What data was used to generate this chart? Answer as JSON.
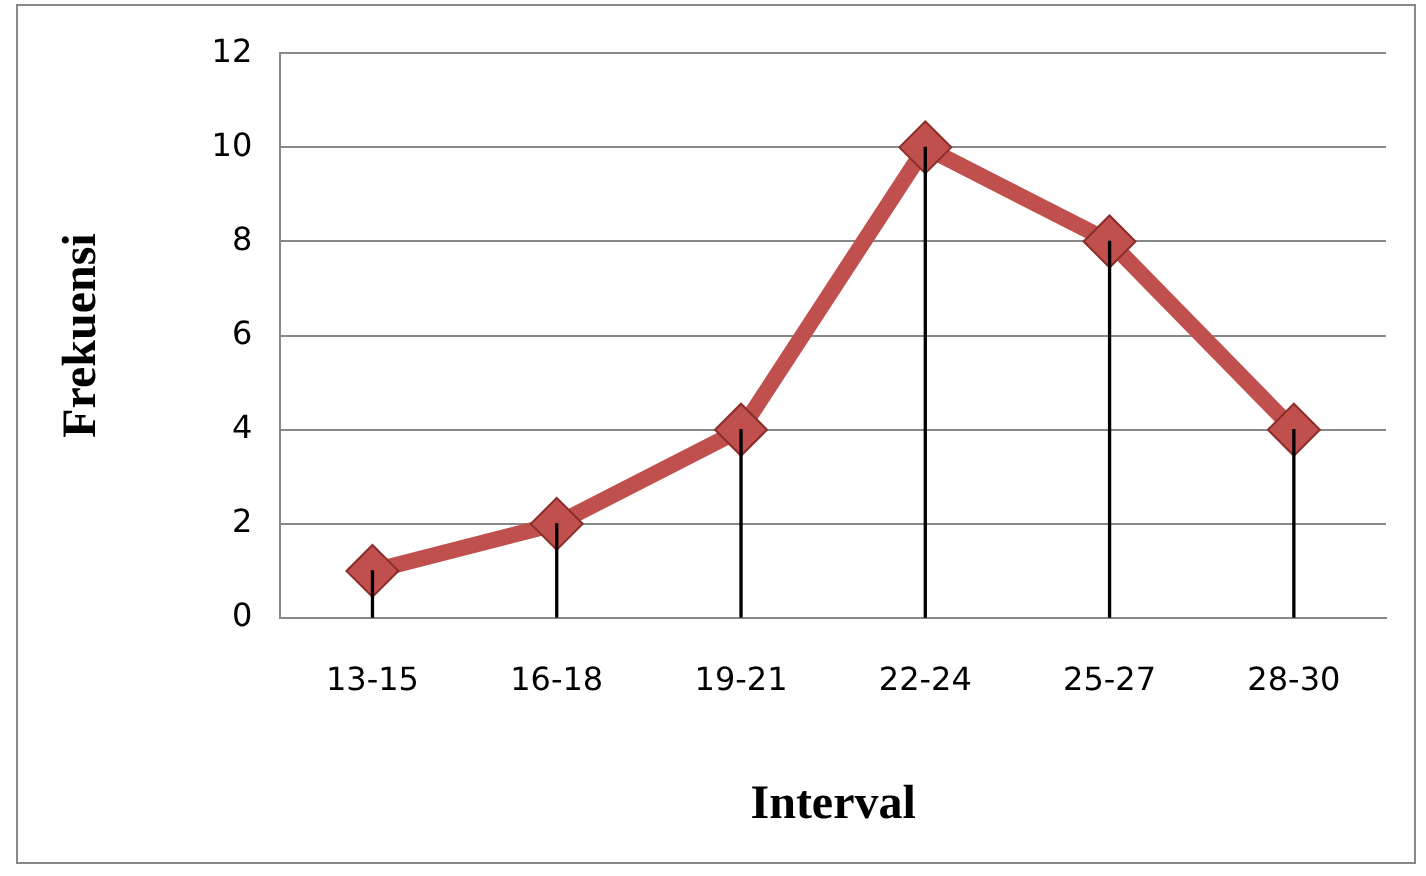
{
  "chart_data": {
    "type": "line",
    "xlabel": "Interval",
    "ylabel": "Frekuensi",
    "categories": [
      "13-15",
      "16-18",
      "19-21",
      "22-24",
      "25-27",
      "28-30"
    ],
    "series": [
      {
        "color": "#c0504d",
        "values": [
          1,
          2,
          4,
          10,
          8,
          4
        ]
      },
      {
        "type": "bar",
        "color": "#000000",
        "values": [
          1,
          2,
          4,
          10,
          8,
          4
        ]
      }
    ],
    "ylim": [
      0,
      12
    ],
    "yticks": [
      0,
      2,
      4,
      6,
      8,
      10,
      12
    ],
    "grid": "y",
    "marker": "diamond",
    "line_style": "solid",
    "legend": false
  }
}
